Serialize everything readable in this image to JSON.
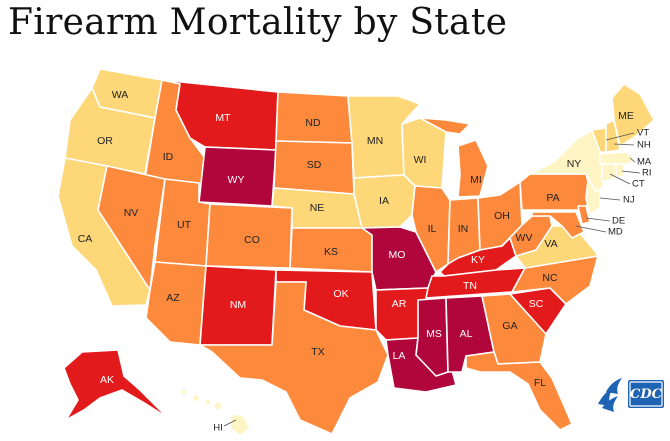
{
  "title": "Firearm Mortality by State",
  "colors": {
    "c1": "#fff5c4",
    "c2": "#fdd778",
    "c3": "#fd8a3c",
    "c4": "#e31a1c",
    "c5": "#b0063b"
  },
  "states": [
    {
      "code": "WA",
      "cls": "c2"
    },
    {
      "code": "OR",
      "cls": "c2"
    },
    {
      "code": "CA",
      "cls": "c2"
    },
    {
      "code": "ID",
      "cls": "c3"
    },
    {
      "code": "NV",
      "cls": "c3"
    },
    {
      "code": "MT",
      "cls": "c4"
    },
    {
      "code": "WY",
      "cls": "c5"
    },
    {
      "code": "UT",
      "cls": "c3"
    },
    {
      "code": "AZ",
      "cls": "c3"
    },
    {
      "code": "CO",
      "cls": "c3"
    },
    {
      "code": "NM",
      "cls": "c4"
    },
    {
      "code": "ND",
      "cls": "c3"
    },
    {
      "code": "SD",
      "cls": "c3"
    },
    {
      "code": "NE",
      "cls": "c2"
    },
    {
      "code": "KS",
      "cls": "c3"
    },
    {
      "code": "OK",
      "cls": "c4"
    },
    {
      "code": "TX",
      "cls": "c3"
    },
    {
      "code": "MN",
      "cls": "c2"
    },
    {
      "code": "IA",
      "cls": "c2"
    },
    {
      "code": "MO",
      "cls": "c5"
    },
    {
      "code": "AR",
      "cls": "c4"
    },
    {
      "code": "LA",
      "cls": "c5"
    },
    {
      "code": "WI",
      "cls": "c2"
    },
    {
      "code": "IL",
      "cls": "c3"
    },
    {
      "code": "MI",
      "cls": "c3"
    },
    {
      "code": "IN",
      "cls": "c3"
    },
    {
      "code": "OH",
      "cls": "c3"
    },
    {
      "code": "KY",
      "cls": "c4"
    },
    {
      "code": "TN",
      "cls": "c4"
    },
    {
      "code": "MS",
      "cls": "c5"
    },
    {
      "code": "AL",
      "cls": "c5"
    },
    {
      "code": "GA",
      "cls": "c3"
    },
    {
      "code": "FL",
      "cls": "c3"
    },
    {
      "code": "SC",
      "cls": "c4"
    },
    {
      "code": "NC",
      "cls": "c3"
    },
    {
      "code": "VA",
      "cls": "c2"
    },
    {
      "code": "WV",
      "cls": "c3"
    },
    {
      "code": "PA",
      "cls": "c3"
    },
    {
      "code": "NY",
      "cls": "c1"
    },
    {
      "code": "ME",
      "cls": "c2"
    },
    {
      "code": "VT",
      "cls": "c2"
    },
    {
      "code": "NH",
      "cls": "c2"
    },
    {
      "code": "MA",
      "cls": "c1"
    },
    {
      "code": "RI",
      "cls": "c1"
    },
    {
      "code": "CT",
      "cls": "c1"
    },
    {
      "code": "NJ",
      "cls": "c1"
    },
    {
      "code": "DE",
      "cls": "c3"
    },
    {
      "code": "MD",
      "cls": "c3"
    },
    {
      "code": "AK",
      "cls": "c4"
    },
    {
      "code": "HI",
      "cls": "c1"
    }
  ],
  "logo": {
    "text": "CDC",
    "hhs_icon": "hhs-eagle-icon",
    "cdc_icon": "cdc-logo-icon",
    "color": "#1e63b4"
  }
}
